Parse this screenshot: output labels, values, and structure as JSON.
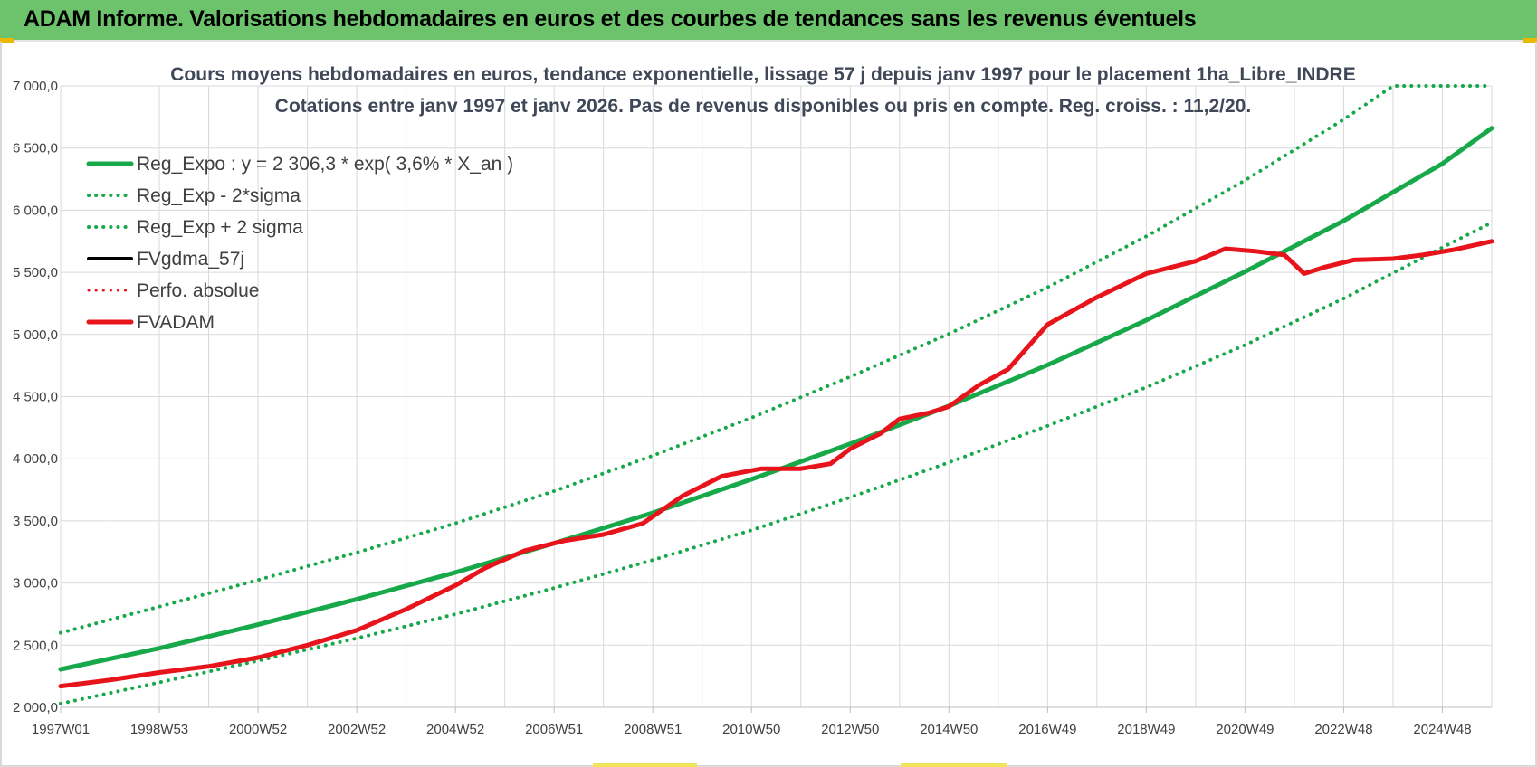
{
  "header": {
    "title": "ADAM Informe. Valorisations hebdomadaires en euros et des courbes de tendances sans les revenus éventuels"
  },
  "colors": {
    "header_bg": "#6dc36b",
    "green": "#17a84a",
    "red": "#e8141b",
    "black": "#000000",
    "grid": "#d9d9d9"
  },
  "chart_data": {
    "type": "line",
    "title_line1": "Cours moyens hebdomadaires en euros, tendance exponentielle, lissage 57 j depuis janv 1997  pour le placement 1ha_Libre_INDRE",
    "title_line2": "Cotations entre janv 1997 et janv 2026. Pas de revenus disponibles ou pris en compte. Reg. croiss. : 11,2/20.",
    "x_start": 1997.0,
    "x_end": 2026.0,
    "ylim": [
      2000,
      7000
    ],
    "y_ticks": [
      {
        "value": 2000,
        "label": "2 000,0"
      },
      {
        "value": 2500,
        "label": "2 500,0"
      },
      {
        "value": 3000,
        "label": "3 000,0"
      },
      {
        "value": 3500,
        "label": "3 500,0"
      },
      {
        "value": 4000,
        "label": "4 000,0"
      },
      {
        "value": 4500,
        "label": "4 500,0"
      },
      {
        "value": 5000,
        "label": "5 000,0"
      },
      {
        "value": 5500,
        "label": "5 500,0"
      },
      {
        "value": 6000,
        "label": "6 000,0"
      },
      {
        "value": 6500,
        "label": "6 500,0"
      },
      {
        "value": 7000,
        "label": "7 000,0"
      }
    ],
    "x_ticks": [
      {
        "year": 1997.0,
        "label": "1997W01"
      },
      {
        "year": 1999.0,
        "label": "1998W53"
      },
      {
        "year": 2001.0,
        "label": "2000W52"
      },
      {
        "year": 2003.0,
        "label": "2002W52"
      },
      {
        "year": 2005.0,
        "label": "2004W52"
      },
      {
        "year": 2007.0,
        "label": "2006W51"
      },
      {
        "year": 2009.0,
        "label": "2008W51"
      },
      {
        "year": 2011.0,
        "label": "2010W50"
      },
      {
        "year": 2013.0,
        "label": "2012W50"
      },
      {
        "year": 2015.0,
        "label": "2014W50"
      },
      {
        "year": 2017.0,
        "label": "2016W49"
      },
      {
        "year": 2019.0,
        "label": "2018W49"
      },
      {
        "year": 2021.0,
        "label": "2020W49"
      },
      {
        "year": 2023.0,
        "label": "2022W48"
      },
      {
        "year": 2025.0,
        "label": "2024W48"
      }
    ],
    "legend": [
      {
        "name": "Reg_Expo : y = 2 306,3 * exp( 3,6% *  X_an )",
        "color": "#17a84a",
        "style": "solid",
        "width": 5
      },
      {
        "name": "Reg_Exp - 2*sigma",
        "color": "#17a84a",
        "style": "dotted",
        "width": 4
      },
      {
        "name": "Reg_Exp + 2 sigma",
        "color": "#17a84a",
        "style": "dotted",
        "width": 4
      },
      {
        "name": "FVgdma_57j",
        "color": "#000000",
        "style": "solid",
        "width": 4
      },
      {
        "name": "Perfo. absolue",
        "color": "#e8141b",
        "style": "dotted",
        "width": 3
      },
      {
        "name": "FVADAM",
        "color": "#e8141b",
        "style": "solid",
        "width": 5
      }
    ],
    "series": [
      {
        "name": "Reg_Expo",
        "x": [
          1997,
          1999,
          2001,
          2003,
          2005,
          2007,
          2009,
          2011,
          2013,
          2015,
          2017,
          2019,
          2021,
          2023,
          2025,
          2026
        ],
        "values": [
          2306,
          2475,
          2665,
          2870,
          3085,
          3320,
          3565,
          3835,
          4120,
          4425,
          4755,
          5115,
          5505,
          5915,
          6375,
          6660
        ]
      },
      {
        "name": "Reg_Exp - 2*sigma",
        "x": [
          1997,
          1999,
          2001,
          2003,
          2005,
          2007,
          2009,
          2011,
          2013,
          2015,
          2017,
          2019,
          2021,
          2023,
          2025,
          2026
        ],
        "values": [
          2030,
          2200,
          2375,
          2555,
          2750,
          2960,
          3185,
          3425,
          3690,
          3970,
          4265,
          4575,
          4915,
          5290,
          5700,
          5900
        ]
      },
      {
        "name": "Reg_Exp + 2 sigma",
        "x": [
          1997,
          1999,
          2001,
          2003,
          2005,
          2007,
          2009,
          2011,
          2013,
          2015,
          2017,
          2019,
          2021,
          2023,
          2024,
          2026
        ],
        "values": [
          2600,
          2810,
          3025,
          3245,
          3480,
          3740,
          4025,
          4330,
          4660,
          5005,
          5380,
          5790,
          6240,
          6730,
          7000,
          7000
        ]
      },
      {
        "name": "FVgdma_57j",
        "x": [
          1997,
          1998,
          1999,
          2000,
          2001,
          2002,
          2003,
          2004,
          2005,
          2005.6,
          2006.4,
          2007.2,
          2008,
          2008.8,
          2009.6,
          2010.4,
          2011.2,
          2012,
          2012.6,
          2013,
          2013.6,
          2014,
          2014.6,
          2015,
          2015.6,
          2016.2,
          2017,
          2018,
          2019,
          2020,
          2020.6,
          2021.2,
          2021.8,
          2022.2,
          2022.6,
          2023.2,
          2024,
          2024.6,
          2025.2,
          2026
        ],
        "values": [
          2170,
          2220,
          2280,
          2330,
          2400,
          2500,
          2620,
          2790,
          2980,
          3120,
          3260,
          3340,
          3390,
          3480,
          3700,
          3860,
          3920,
          3920,
          3960,
          4080,
          4200,
          4320,
          4370,
          4420,
          4590,
          4720,
          5080,
          5300,
          5490,
          5590,
          5690,
          5670,
          5640,
          5490,
          5540,
          5600,
          5610,
          5640,
          5680,
          5750
        ]
      },
      {
        "name": "FVADAM",
        "x": [
          1997,
          1998,
          1999,
          2000,
          2001,
          2002,
          2003,
          2004,
          2005,
          2005.6,
          2006.4,
          2007.2,
          2008,
          2008.8,
          2009.6,
          2010.4,
          2011.2,
          2012,
          2012.6,
          2013,
          2013.6,
          2014,
          2014.6,
          2015,
          2015.6,
          2016.2,
          2017,
          2018,
          2019,
          2020,
          2020.6,
          2021.2,
          2021.8,
          2022.2,
          2022.6,
          2023.2,
          2024,
          2024.6,
          2025.2,
          2026
        ],
        "values": [
          2170,
          2220,
          2280,
          2330,
          2400,
          2500,
          2620,
          2790,
          2980,
          3120,
          3260,
          3340,
          3390,
          3480,
          3700,
          3860,
          3920,
          3920,
          3960,
          4080,
          4200,
          4320,
          4370,
          4420,
          4590,
          4720,
          5080,
          5300,
          5490,
          5590,
          5690,
          5670,
          5640,
          5490,
          5540,
          5600,
          5610,
          5640,
          5680,
          5750
        ]
      }
    ]
  }
}
